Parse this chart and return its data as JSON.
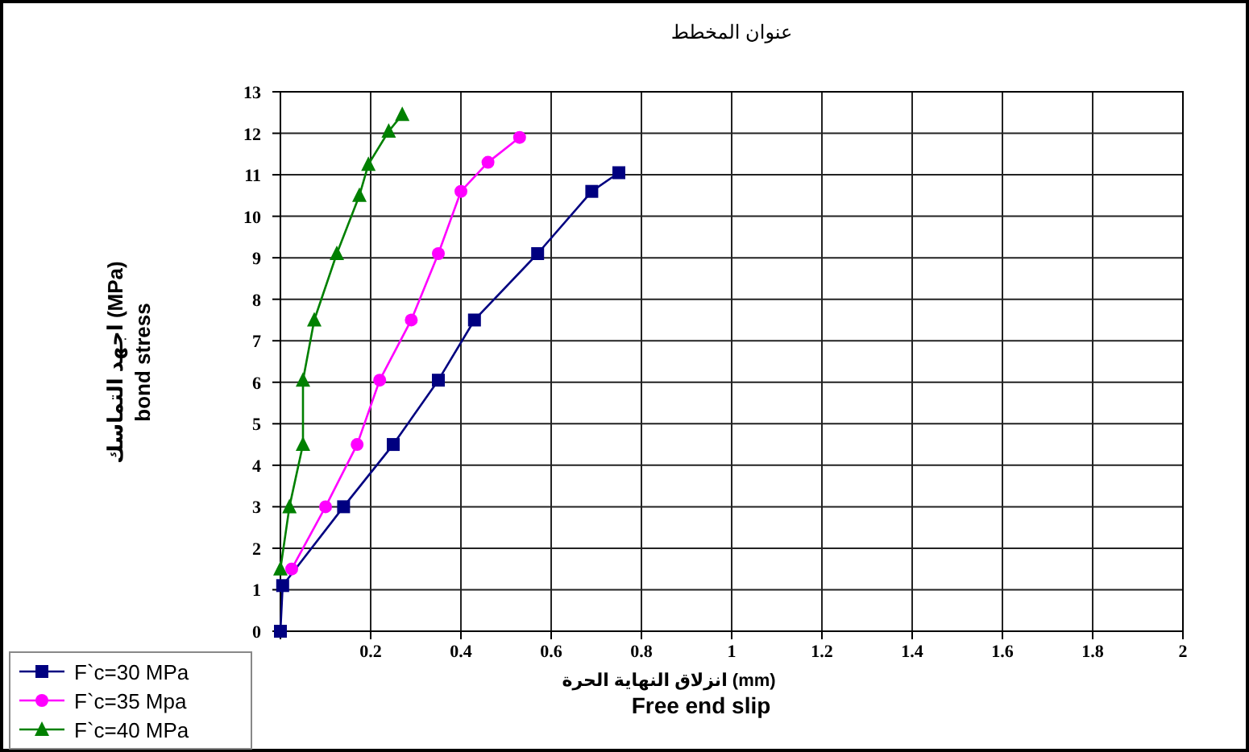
{
  "chart_data": {
    "type": "line",
    "title": "عنوان المخطط",
    "xlabel": "انزلاق النهاية الحرة (mm)\nFree end slip",
    "ylabel": "اجهد التماسك (MPa)\nbond stress",
    "xlim": [
      0,
      2
    ],
    "xticks": [
      {
        "value": 0,
        "label": null
      },
      0.2,
      0.4,
      0.6,
      0.8,
      1,
      1.2,
      1.4,
      1.6,
      1.8,
      2
    ],
    "ylim": [
      0,
      13
    ],
    "yticks": [
      0,
      1,
      2,
      3,
      4,
      5,
      6,
      7,
      8,
      9,
      10,
      11,
      12,
      13
    ],
    "grid": true,
    "legend": "bottom left",
    "series": [
      {
        "name": "F`c=30 MPa",
        "color": "#000080",
        "marker": "square",
        "x": [
          0,
          0.005,
          0.14,
          0.25,
          0.35,
          0.43,
          0.57,
          0.69,
          0.75
        ],
        "values": [
          0,
          1.1,
          3.0,
          4.5,
          6.05,
          7.5,
          9.1,
          10.6,
          11.05
        ]
      },
      {
        "name": "F`c=35 Mpa",
        "color": "#ff00ff",
        "marker": "circle",
        "x": [
          0.025,
          0.1,
          0.17,
          0.22,
          0.29,
          0.35,
          0.4,
          0.46,
          0.53
        ],
        "values": [
          1.5,
          3.0,
          4.5,
          6.05,
          7.5,
          9.1,
          10.6,
          11.3,
          11.9
        ]
      },
      {
        "name": "F`c=40 MPa",
        "color": "#008000",
        "marker": "triangle",
        "x": [
          0,
          0.02,
          0.05,
          0.05,
          0.075,
          0.125,
          0.175,
          0.195,
          0.24,
          0.27
        ],
        "values": [
          1.5,
          3.0,
          4.5,
          6.05,
          7.5,
          9.1,
          10.5,
          11.25,
          12.05,
          12.45
        ]
      }
    ]
  }
}
